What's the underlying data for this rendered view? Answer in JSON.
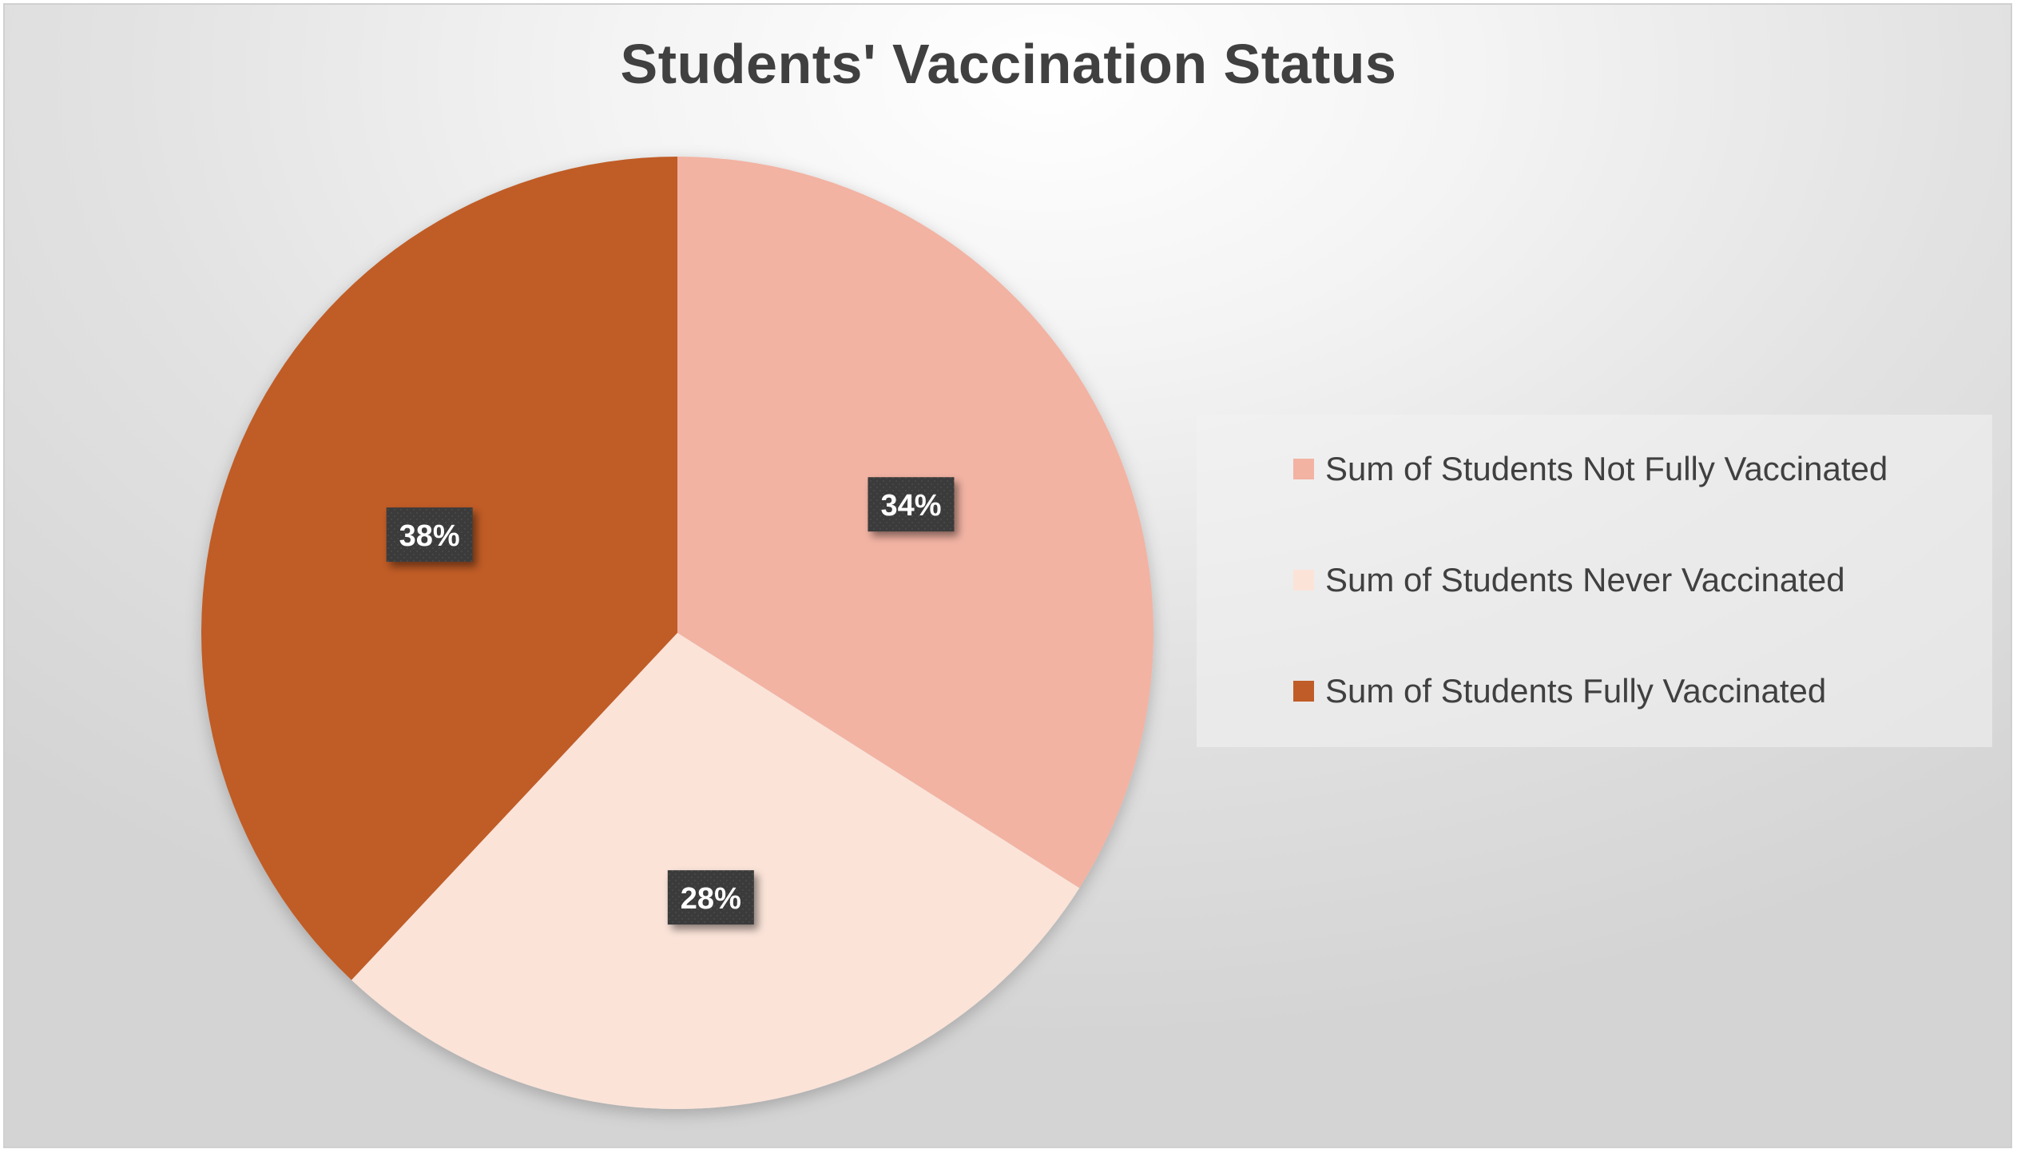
{
  "chart_data": {
    "type": "pie",
    "title": "Students' Vaccination Status",
    "start_angle_deg": 0,
    "direction": "clockwise",
    "legend_position": "right",
    "slices": [
      {
        "label": "Sum of Students Not Fully Vaccinated",
        "value": 34,
        "display": "34%",
        "color": "#F2B3A3"
      },
      {
        "label": "Sum of Students Never Vaccinated",
        "value": 28,
        "display": "28%",
        "color": "#FBE3D8"
      },
      {
        "label": "Sum of Students Fully Vaccinated",
        "value": 38,
        "display": "38%",
        "color": "#C05C27"
      }
    ]
  },
  "data_label_style": {
    "background": "#3a3a3a",
    "text_color": "#ffffff"
  }
}
